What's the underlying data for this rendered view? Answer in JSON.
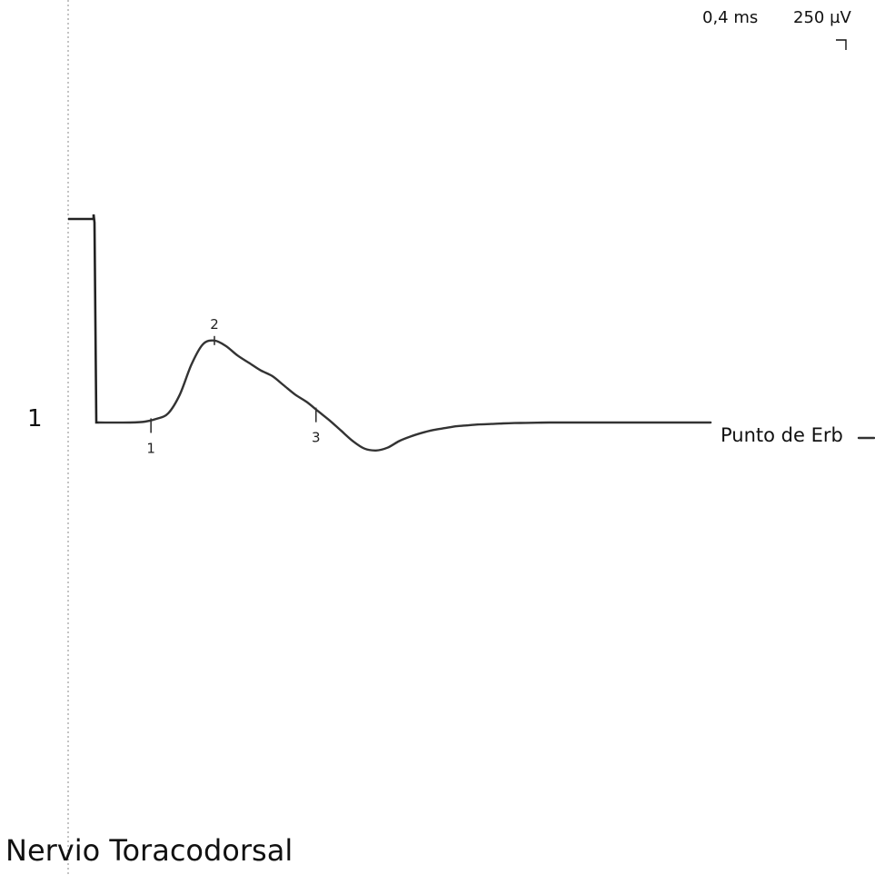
{
  "chart_data": {
    "type": "line",
    "title": "Nervio Toracodorsal",
    "channel": "1",
    "trace_label": "Punto de Erb",
    "scale": {
      "time_per_div": "0,4 ms",
      "amplitude_per_div": "250 µV"
    },
    "xlabel": "",
    "ylabel": "",
    "time_ms": [
      0.0,
      0.27,
      0.4,
      0.5,
      0.6,
      0.7,
      0.8,
      0.9,
      1.0,
      1.1,
      1.2,
      1.3,
      1.4,
      1.5,
      1.6,
      1.7,
      1.8,
      1.9,
      2.0,
      2.1,
      2.2,
      2.3,
      2.4,
      2.5,
      2.6,
      2.7,
      2.8,
      2.9,
      3.0,
      3.1,
      3.2,
      3.3,
      3.4,
      3.5,
      3.6,
      3.7,
      3.8,
      3.9,
      4.0,
      4.1,
      4.2,
      4.3,
      4.4,
      4.5,
      4.6,
      4.7,
      4.8,
      4.9,
      5.0,
      5.1,
      5.2,
      5.3
    ],
    "amplitude_uV": [
      0,
      0,
      5,
      20,
      50,
      150,
      310,
      420,
      440,
      410,
      360,
      320,
      280,
      250,
      200,
      150,
      110,
      60,
      10,
      -45,
      -100,
      -140,
      -150,
      -135,
      -100,
      -75,
      -55,
      -40,
      -30,
      -20,
      -15,
      -10,
      -8,
      -5,
      -3,
      -2,
      -1,
      0,
      0,
      0,
      0,
      0,
      0,
      0,
      0,
      0,
      0,
      0,
      0,
      0,
      0,
      0
    ],
    "markers": [
      {
        "label": "1",
        "time_ms": 0.45
      },
      {
        "label": "2",
        "time_ms": 1.0
      },
      {
        "label": "3",
        "time_ms": 1.88
      }
    ],
    "stimulus_time_ms": 0.0,
    "stimulus_amplitude_uV": 1820,
    "baseline_dashed_line": true
  }
}
